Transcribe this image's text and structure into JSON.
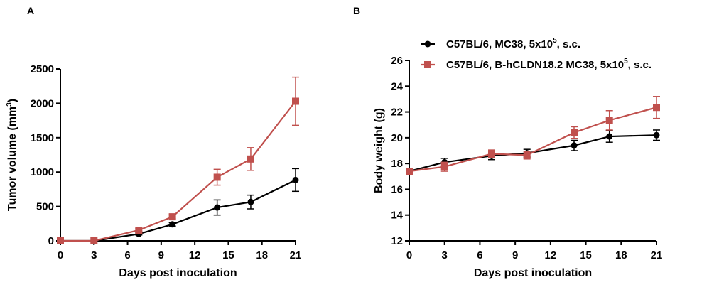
{
  "chart_data": [
    {
      "type": "line",
      "panel_label": "A",
      "x": [
        0,
        3,
        7,
        10,
        14,
        17,
        21
      ],
      "xticks": [
        "0",
        "3",
        "6",
        "9",
        "12",
        "15",
        "18",
        "21"
      ],
      "xlim": [
        0,
        21
      ],
      "xlabel": "Days post inoculation",
      "ylabel_main": "Tumor volume (mm",
      "ylabel_sup": "3",
      "ylabel_close": ")",
      "yticks": [
        "0",
        "500",
        "1000",
        "1500",
        "2000",
        "2500"
      ],
      "ylim": [
        0,
        2500
      ],
      "series": [
        {
          "name": "C57BL/6, MC38, 5x10^5, s.c.",
          "color": "#000000",
          "marker": "circle",
          "values": [
            0,
            0,
            100,
            240,
            485,
            565,
            885
          ],
          "errors": [
            0,
            0,
            15,
            25,
            110,
            100,
            165
          ]
        },
        {
          "name": "C57BL/6, B-hCLDN18.2 MC38, 5x10^5, s.c.",
          "color": "#c0504d",
          "marker": "square",
          "values": [
            0,
            0,
            155,
            350,
            925,
            1190,
            2030
          ],
          "errors": [
            0,
            0,
            20,
            30,
            115,
            165,
            350
          ]
        }
      ]
    },
    {
      "type": "line",
      "panel_label": "B",
      "x": [
        0,
        3,
        7,
        10,
        14,
        17,
        21
      ],
      "xticks": [
        "0",
        "3",
        "6",
        "9",
        "12",
        "15",
        "18",
        "21"
      ],
      "xlim": [
        0,
        21
      ],
      "xlabel": "Days post inoculation",
      "ylabel": "Body weight (g)",
      "yticks": [
        "12",
        "14",
        "16",
        "18",
        "20",
        "22",
        "24",
        "26"
      ],
      "ylim": [
        12,
        26
      ],
      "legend": [
        {
          "pre": "C57BL/6, MC38, 5x10",
          "sup": "5",
          "post": ", s.c."
        },
        {
          "pre": "C57BL/6, B-hCLDN18.2 MC38, 5x10",
          "sup": "5",
          "post": ", s.c."
        }
      ],
      "legend_position": "top",
      "series": [
        {
          "name": "C57BL/6, MC38, 5x10^5, s.c.",
          "color": "#000000",
          "marker": "circle",
          "values": [
            17.4,
            18.1,
            18.6,
            18.8,
            19.4,
            20.1,
            20.2
          ],
          "errors": [
            0.15,
            0.3,
            0.3,
            0.3,
            0.4,
            0.45,
            0.4
          ]
        },
        {
          "name": "C57BL/6, B-hCLDN18.2 MC38, 5x10^5, s.c.",
          "color": "#c0504d",
          "marker": "square",
          "values": [
            17.4,
            17.75,
            18.75,
            18.65,
            20.4,
            21.35,
            22.35
          ],
          "errors": [
            0.15,
            0.35,
            0.3,
            0.3,
            0.45,
            0.75,
            0.85
          ]
        }
      ]
    }
  ]
}
